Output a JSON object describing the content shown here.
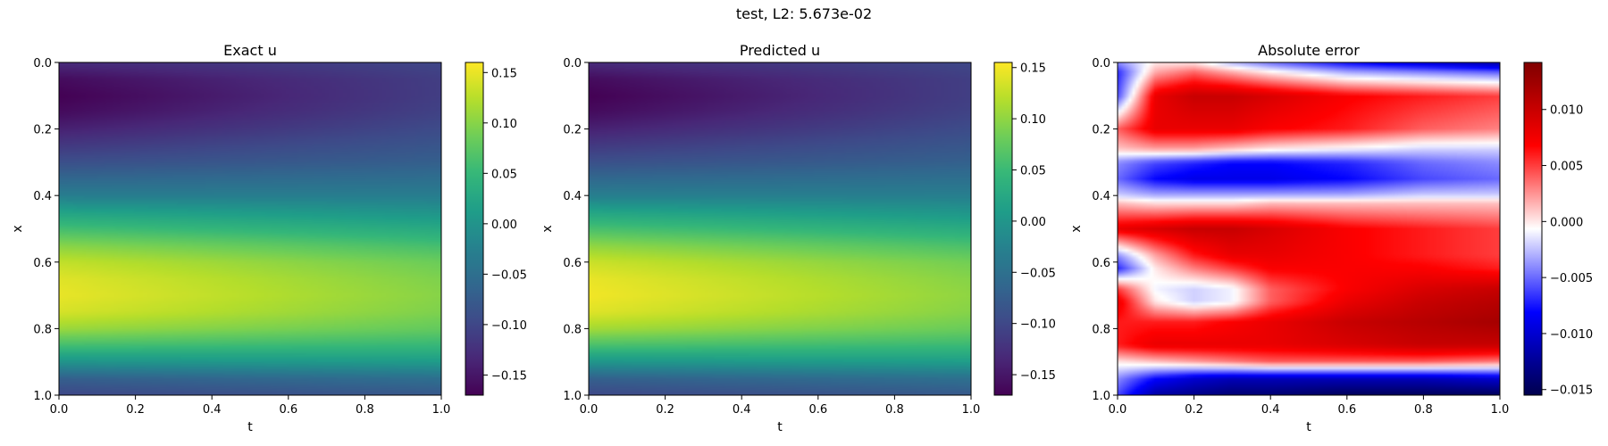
{
  "figure_title": "test, L2: 5.673e-02",
  "colormaps": {
    "viridis": [
      "#440154",
      "#482878",
      "#3e4a89",
      "#31688e",
      "#26828e",
      "#1f9e89",
      "#35b779",
      "#6ece58",
      "#b5de2b",
      "#fde725"
    ],
    "seismic": [
      "#00004d",
      "#0000ff",
      "#ffffff",
      "#ff0000",
      "#800000"
    ]
  },
  "chart_data": [
    {
      "type": "heatmap",
      "title": "Exact u",
      "xlabel": "t",
      "ylabel": "x",
      "xlim": [
        0.0,
        1.0
      ],
      "ylim": [
        1.0,
        0.0
      ],
      "xticks": [
        "0.0",
        "0.2",
        "0.4",
        "0.6",
        "0.8",
        "1.0"
      ],
      "yticks": [
        "0.0",
        "0.2",
        "0.4",
        "0.6",
        "0.8",
        "1.0"
      ],
      "colormap": "viridis",
      "vmin": -0.17,
      "vmax": 0.16,
      "colorbar_ticks": [
        "0.15",
        "0.10",
        "0.05",
        "0.00",
        "−0.05",
        "−0.10",
        "−0.15"
      ],
      "colorbar_tick_values": [
        0.15,
        0.1,
        0.05,
        0.0,
        -0.05,
        -0.1,
        -0.15
      ],
      "x_samples": [
        0.0,
        1.0
      ],
      "y_samples": [
        0.0,
        0.05,
        0.1,
        0.15,
        0.2,
        0.3,
        0.4,
        0.45,
        0.5,
        0.55,
        0.6,
        0.65,
        0.7,
        0.75,
        0.8,
        0.85,
        0.9,
        0.95,
        1.0
      ],
      "values": [
        [
          -0.13,
          -0.1
        ],
        [
          -0.16,
          -0.11
        ],
        [
          -0.17,
          -0.11
        ],
        [
          -0.16,
          -0.105
        ],
        [
          -0.14,
          -0.095
        ],
        [
          -0.09,
          -0.07
        ],
        [
          -0.03,
          -0.03
        ],
        [
          0.02,
          0.0
        ],
        [
          0.06,
          0.03
        ],
        [
          0.1,
          0.06
        ],
        [
          0.13,
          0.085
        ],
        [
          0.145,
          0.095
        ],
        [
          0.15,
          0.1
        ],
        [
          0.14,
          0.095
        ],
        [
          0.11,
          0.08
        ],
        [
          0.06,
          0.05
        ],
        [
          0.0,
          0.01
        ],
        [
          -0.07,
          -0.05
        ],
        [
          -0.1,
          -0.08
        ]
      ]
    },
    {
      "type": "heatmap",
      "title": "Predicted u",
      "xlabel": "t",
      "ylabel": "x",
      "xlim": [
        0.0,
        1.0
      ],
      "ylim": [
        1.0,
        0.0
      ],
      "xticks": [
        "0.0",
        "0.2",
        "0.4",
        "0.6",
        "0.8",
        "1.0"
      ],
      "yticks": [
        "0.0",
        "0.2",
        "0.4",
        "0.6",
        "0.8",
        "1.0"
      ],
      "colormap": "viridis",
      "vmin": -0.17,
      "vmax": 0.155,
      "colorbar_ticks": [
        "0.15",
        "0.10",
        "0.05",
        "0.00",
        "−0.05",
        "−0.10",
        "−0.15"
      ],
      "colorbar_tick_values": [
        0.15,
        0.1,
        0.05,
        0.0,
        -0.05,
        -0.1,
        -0.15
      ],
      "x_samples": [
        0.0,
        1.0
      ],
      "y_samples": [
        0.0,
        0.05,
        0.1,
        0.15,
        0.2,
        0.3,
        0.4,
        0.45,
        0.5,
        0.55,
        0.6,
        0.65,
        0.7,
        0.75,
        0.8,
        0.85,
        0.9,
        0.95,
        1.0
      ],
      "values": [
        [
          -0.13,
          -0.1
        ],
        [
          -0.16,
          -0.11
        ],
        [
          -0.17,
          -0.11
        ],
        [
          -0.16,
          -0.105
        ],
        [
          -0.14,
          -0.095
        ],
        [
          -0.09,
          -0.07
        ],
        [
          -0.03,
          -0.03
        ],
        [
          0.02,
          0.0
        ],
        [
          0.06,
          0.03
        ],
        [
          0.1,
          0.06
        ],
        [
          0.13,
          0.085
        ],
        [
          0.145,
          0.095
        ],
        [
          0.15,
          0.1
        ],
        [
          0.14,
          0.095
        ],
        [
          0.11,
          0.08
        ],
        [
          0.06,
          0.05
        ],
        [
          0.0,
          0.01
        ],
        [
          -0.07,
          -0.05
        ],
        [
          -0.1,
          -0.08
        ]
      ]
    },
    {
      "type": "heatmap",
      "title": "Absolute error",
      "xlabel": "t",
      "ylabel": "x",
      "xlim": [
        0.0,
        1.0
      ],
      "ylim": [
        1.0,
        0.0
      ],
      "xticks": [
        "0.0",
        "0.2",
        "0.4",
        "0.6",
        "0.8",
        "1.0"
      ],
      "yticks": [
        "0.0",
        "0.2",
        "0.4",
        "0.6",
        "0.8",
        "1.0"
      ],
      "colormap": "seismic",
      "vmin": -0.0155,
      "vmax": 0.0142,
      "colorbar_ticks": [
        "0.010",
        "0.005",
        "0.000",
        "−0.005",
        "−0.010",
        "−0.015"
      ],
      "colorbar_tick_values": [
        0.01,
        0.005,
        0.0,
        -0.005,
        -0.01,
        -0.015
      ],
      "x_samples": [
        0.0,
        0.1,
        0.2,
        0.3,
        0.4,
        0.6,
        0.8,
        1.0
      ],
      "y_samples": [
        0.0,
        0.03,
        0.1,
        0.2,
        0.26,
        0.3,
        0.35,
        0.4,
        0.42,
        0.5,
        0.58,
        0.62,
        0.68,
        0.72,
        0.78,
        0.85,
        0.9,
        0.95,
        1.0
      ],
      "values": [
        [
          -0.004,
          0.0,
          0.0,
          -0.003,
          -0.005,
          -0.008,
          -0.01,
          -0.012
        ],
        [
          -0.007,
          0.002,
          0.004,
          0.002,
          0.0,
          -0.003,
          -0.004,
          -0.005
        ],
        [
          -0.006,
          0.008,
          0.01,
          0.01,
          0.009,
          0.007,
          0.006,
          0.005
        ],
        [
          0.004,
          0.008,
          0.008,
          0.008,
          0.007,
          0.006,
          0.004,
          0.003
        ],
        [
          0.001,
          0.002,
          0.002,
          0.001,
          0.0,
          -0.001,
          -0.002,
          -0.002
        ],
        [
          -0.004,
          -0.006,
          -0.007,
          -0.008,
          -0.008,
          -0.007,
          -0.005,
          -0.004
        ],
        [
          -0.005,
          -0.008,
          -0.009,
          -0.009,
          -0.009,
          -0.008,
          -0.006,
          -0.005
        ],
        [
          -0.002,
          -0.003,
          -0.003,
          -0.003,
          -0.003,
          -0.003,
          -0.002,
          -0.002
        ],
        [
          0.001,
          0.0,
          0.0,
          0.0,
          0.001,
          0.001,
          0.001,
          0.001
        ],
        [
          0.008,
          0.009,
          0.01,
          0.01,
          0.009,
          0.007,
          0.006,
          0.005
        ],
        [
          -0.004,
          0.002,
          0.006,
          0.008,
          0.008,
          0.007,
          0.006,
          0.005
        ],
        [
          -0.007,
          0.0,
          0.003,
          0.005,
          0.007,
          0.007,
          0.007,
          0.006
        ],
        [
          0.005,
          -0.001,
          -0.002,
          -0.001,
          0.004,
          0.007,
          0.009,
          0.01
        ],
        [
          0.008,
          0.0,
          -0.002,
          -0.001,
          0.004,
          0.008,
          0.01,
          0.011
        ],
        [
          0.006,
          0.006,
          0.006,
          0.007,
          0.008,
          0.01,
          0.011,
          0.012
        ],
        [
          0.006,
          0.008,
          0.008,
          0.008,
          0.008,
          0.009,
          0.01,
          0.01
        ],
        [
          0.0,
          0.001,
          0.002,
          0.003,
          0.004,
          0.004,
          0.004,
          0.003
        ],
        [
          -0.004,
          -0.008,
          -0.01,
          -0.011,
          -0.011,
          -0.011,
          -0.011,
          -0.01
        ],
        [
          -0.006,
          -0.012,
          -0.013,
          -0.014,
          -0.014,
          -0.015,
          -0.015,
          -0.015
        ]
      ]
    }
  ]
}
